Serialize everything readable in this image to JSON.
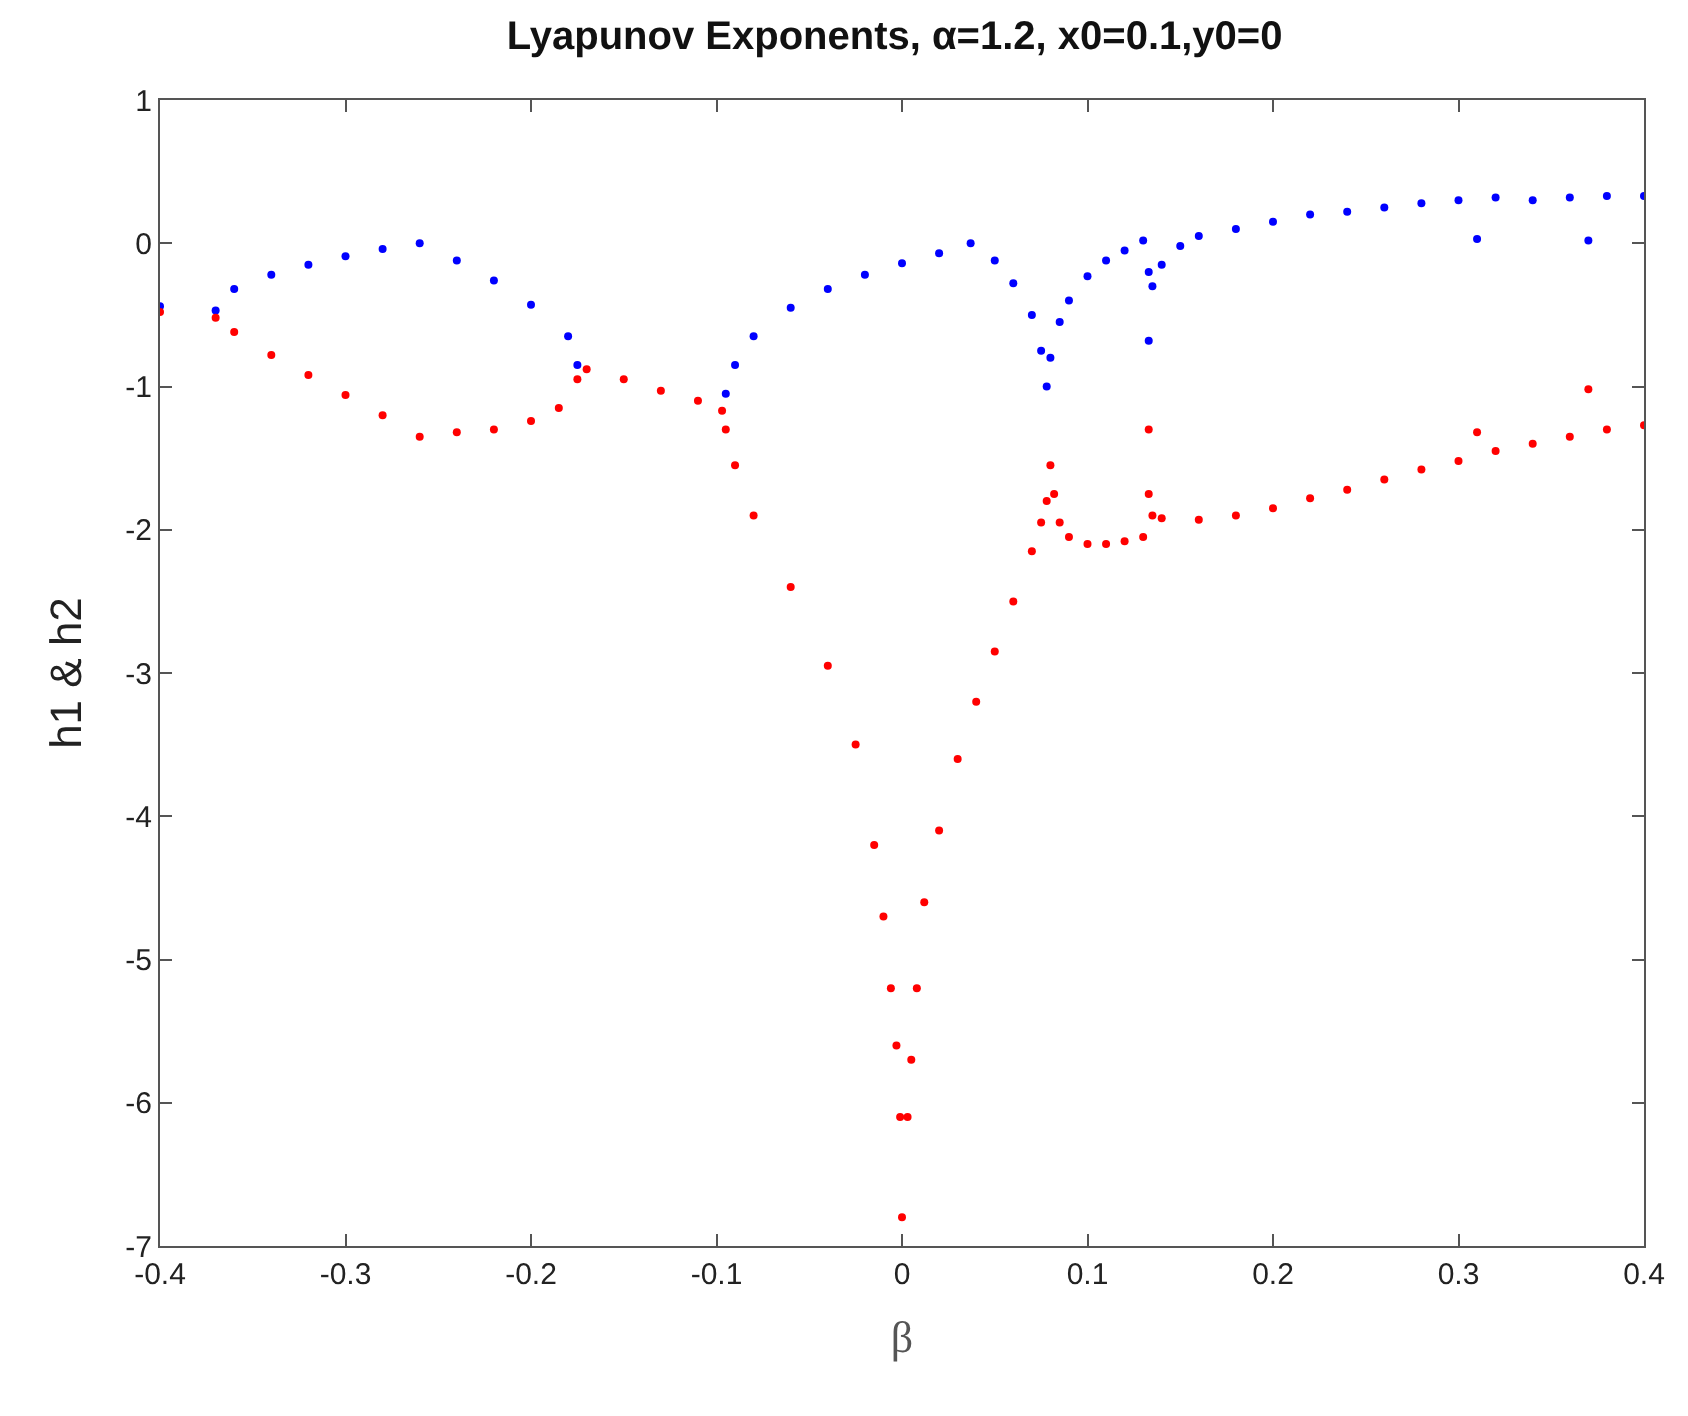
{
  "chart_data": {
    "type": "scatter",
    "title": "Lyapunov Exponents, α=1.2, x0=0.1,y0=0",
    "xlabel": "β",
    "ylabel": "h1 & h2",
    "xlim": [
      -0.4,
      0.4
    ],
    "xticks": [
      -0.4,
      -0.3,
      -0.2,
      -0.1,
      0,
      0.1,
      0.2,
      0.3,
      0.4
    ],
    "ylim": [
      -7,
      1
    ],
    "yticks": [
      -7,
      -6,
      -5,
      -4,
      -3,
      -2,
      -1,
      0,
      1
    ],
    "marker": "circle",
    "series": [
      {
        "color": "#0000ff",
        "x": [
          -0.4,
          -0.37,
          -0.36,
          -0.34,
          -0.32,
          -0.3,
          -0.28,
          -0.26,
          -0.24,
          -0.22,
          -0.2,
          -0.18,
          -0.175,
          -0.17,
          -0.15,
          -0.13,
          -0.11,
          -0.097,
          -0.095,
          -0.09,
          -0.08,
          -0.06,
          -0.04,
          -0.02,
          0,
          0.02,
          0.037,
          0.05,
          0.06,
          0.07,
          0.075,
          0.078,
          0.08,
          0.085,
          0.09,
          0.1,
          0.11,
          0.12,
          0.13,
          0.133,
          0.133,
          0.135,
          0.14,
          0.15,
          0.16,
          0.18,
          0.2,
          0.22,
          0.24,
          0.26,
          0.28,
          0.3,
          0.31,
          0.32,
          0.34,
          0.36,
          0.37,
          0.38,
          0.4
        ],
        "values": [
          -0.44,
          -0.47,
          -0.32,
          -0.22,
          -0.15,
          -0.09,
          -0.04,
          0.0,
          -0.12,
          -0.26,
          -0.43,
          -0.65,
          -0.85,
          null,
          null,
          null,
          null,
          null,
          -1.05,
          -0.85,
          -0.65,
          -0.45,
          -0.32,
          -0.22,
          -0.14,
          -0.07,
          0.0,
          -0.12,
          -0.28,
          -0.5,
          -0.75,
          -1.0,
          -0.8,
          -0.55,
          -0.4,
          -0.23,
          -0.12,
          -0.05,
          0.02,
          -0.2,
          -0.68,
          -0.3,
          -0.15,
          -0.02,
          0.05,
          0.1,
          0.15,
          0.2,
          0.22,
          0.25,
          0.28,
          0.3,
          0.03,
          0.32,
          0.3,
          0.32,
          0.02,
          0.33,
          0.33
        ]
      },
      {
        "color": "#ff0000",
        "x": [
          -0.4,
          -0.37,
          -0.36,
          -0.34,
          -0.32,
          -0.3,
          -0.28,
          -0.26,
          -0.24,
          -0.22,
          -0.2,
          -0.185,
          -0.175,
          -0.17,
          -0.15,
          -0.13,
          -0.11,
          -0.097,
          -0.095,
          -0.09,
          -0.08,
          -0.06,
          -0.04,
          -0.025,
          -0.015,
          -0.01,
          -0.006,
          -0.003,
          -0.001,
          0,
          0.003,
          0.005,
          0.008,
          0.012,
          0.02,
          0.03,
          0.04,
          0.05,
          0.06,
          0.07,
          0.075,
          0.078,
          0.08,
          0.082,
          0.085,
          0.09,
          0.1,
          0.11,
          0.12,
          0.13,
          0.133,
          0.133,
          0.135,
          0.14,
          0.16,
          0.18,
          0.2,
          0.22,
          0.24,
          0.26,
          0.28,
          0.3,
          0.31,
          0.32,
          0.34,
          0.36,
          0.37,
          0.38,
          0.4
        ],
        "values": [
          -0.48,
          -0.52,
          -0.62,
          -0.78,
          -0.92,
          -1.06,
          -1.2,
          -1.35,
          -1.32,
          -1.3,
          -1.24,
          -1.15,
          -0.95,
          -0.88,
          -0.95,
          -1.03,
          -1.1,
          -1.17,
          -1.3,
          -1.55,
          -1.9,
          -2.4,
          -2.95,
          -3.5,
          -4.2,
          -4.7,
          -5.2,
          -5.6,
          -6.1,
          -6.8,
          -6.1,
          -5.7,
          -5.2,
          -4.6,
          -4.1,
          -3.6,
          -3.2,
          -2.85,
          -2.5,
          -2.15,
          -1.95,
          -1.8,
          -1.55,
          -1.75,
          -1.95,
          -2.05,
          -2.1,
          -2.1,
          -2.08,
          -2.05,
          -1.75,
          -1.3,
          -1.9,
          -1.92,
          -1.93,
          -1.9,
          -1.85,
          -1.78,
          -1.72,
          -1.65,
          -1.58,
          -1.52,
          -1.32,
          -1.45,
          -1.4,
          -1.35,
          -1.02,
          -1.3,
          -1.27
        ]
      }
    ]
  }
}
